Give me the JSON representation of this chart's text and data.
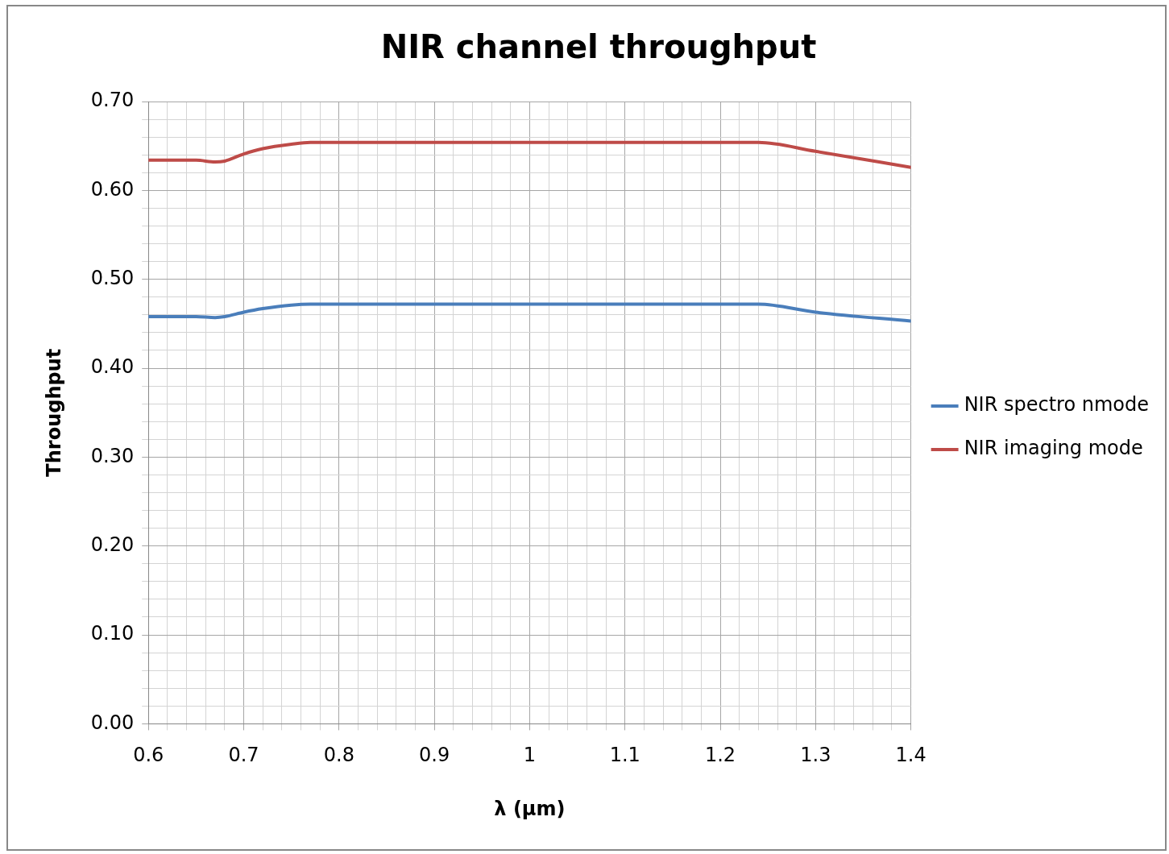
{
  "chart_data": {
    "type": "line",
    "title": "NIR channel throughput",
    "xlabel": "λ (µm)",
    "ylabel": "Throughput",
    "xlim": [
      0.6,
      1.4
    ],
    "xticks": [
      0.6,
      {
        "value": 0.62,
        "label": null
      },
      {
        "value": 0.64,
        "label": null
      },
      {
        "value": 0.66,
        "label": null
      },
      {
        "value": 0.68,
        "label": null
      },
      0.7,
      {
        "value": 0.72,
        "label": null
      },
      {
        "value": 0.74,
        "label": null
      },
      {
        "value": 0.76,
        "label": null
      },
      {
        "value": 0.78,
        "label": null
      },
      0.8,
      {
        "value": 0.82,
        "label": null
      },
      {
        "value": 0.84,
        "label": null
      },
      {
        "value": 0.86,
        "label": null
      },
      {
        "value": 0.88,
        "label": null
      },
      0.9,
      {
        "value": 0.92,
        "label": null
      },
      {
        "value": 0.94,
        "label": null
      },
      {
        "value": 0.96,
        "label": null
      },
      {
        "value": 0.98,
        "label": null
      },
      1,
      {
        "value": 1.02,
        "label": null
      },
      {
        "value": 1.04,
        "label": null
      },
      {
        "value": 1.06,
        "label": null
      },
      {
        "value": 1.08,
        "label": null
      },
      1.1,
      {
        "value": 1.12,
        "label": null
      },
      {
        "value": 1.14,
        "label": null
      },
      {
        "value": 1.16,
        "label": null
      },
      {
        "value": 1.18,
        "label": null
      },
      1.2,
      {
        "value": 1.22,
        "label": null
      },
      {
        "value": 1.24,
        "label": null
      },
      {
        "value": 1.26,
        "label": null
      },
      {
        "value": 1.28,
        "label": null
      },
      1.3,
      {
        "value": 1.32,
        "label": null
      },
      {
        "value": 1.34,
        "label": null
      },
      {
        "value": 1.36,
        "label": null
      },
      {
        "value": 1.38,
        "label": null
      },
      1.4
    ],
    "ylim": [
      0,
      0.7
    ],
    "yticks": [
      {
        "value": 0,
        "label": "0.00"
      },
      {
        "value": 0.02,
        "label": null
      },
      {
        "value": 0.04,
        "label": null
      },
      {
        "value": 0.06,
        "label": null
      },
      {
        "value": 0.08,
        "label": null
      },
      {
        "value": 0.1,
        "label": "0.10"
      },
      {
        "value": 0.12,
        "label": null
      },
      {
        "value": 0.14,
        "label": null
      },
      {
        "value": 0.16,
        "label": null
      },
      {
        "value": 0.18,
        "label": null
      },
      {
        "value": 0.2,
        "label": "0.20"
      },
      {
        "value": 0.22,
        "label": null
      },
      {
        "value": 0.24,
        "label": null
      },
      {
        "value": 0.26,
        "label": null
      },
      {
        "value": 0.28,
        "label": null
      },
      {
        "value": 0.3,
        "label": "0.30"
      },
      {
        "value": 0.32,
        "label": null
      },
      {
        "value": 0.34,
        "label": null
      },
      {
        "value": 0.36,
        "label": null
      },
      {
        "value": 0.38,
        "label": null
      },
      {
        "value": 0.4,
        "label": "0.40"
      },
      {
        "value": 0.42,
        "label": null
      },
      {
        "value": 0.44,
        "label": null
      },
      {
        "value": 0.46,
        "label": null
      },
      {
        "value": 0.48,
        "label": null
      },
      {
        "value": 0.5,
        "label": "0.50"
      },
      {
        "value": 0.52,
        "label": null
      },
      {
        "value": 0.54,
        "label": null
      },
      {
        "value": 0.56,
        "label": null
      },
      {
        "value": 0.58,
        "label": null
      },
      {
        "value": 0.6,
        "label": "0.60"
      },
      {
        "value": 0.62,
        "label": null
      },
      {
        "value": 0.64,
        "label": null
      },
      {
        "value": 0.66,
        "label": null
      },
      {
        "value": 0.68,
        "label": null
      },
      {
        "value": 0.7,
        "label": "0.70"
      }
    ],
    "x": [
      0.6,
      0.65,
      0.67,
      0.68,
      0.7,
      0.72,
      0.75,
      0.77,
      1.0,
      1.24,
      1.3,
      1.4
    ],
    "series": [
      {
        "name": "NIR spectro nmode",
        "color": "#4a7ebb",
        "values": [
          0.458,
          0.458,
          0.457,
          0.458,
          0.463,
          0.467,
          0.471,
          0.472,
          0.472,
          0.472,
          0.463,
          0.453
        ]
      },
      {
        "name": "NIR imaging mode",
        "color": "#be4b48",
        "values": [
          0.634,
          0.634,
          0.632,
          0.633,
          0.641,
          0.647,
          0.652,
          0.654,
          0.654,
          0.654,
          0.644,
          0.626
        ]
      }
    ],
    "grid": true,
    "legend": "right",
    "marker": "none",
    "line_style": "solid"
  }
}
